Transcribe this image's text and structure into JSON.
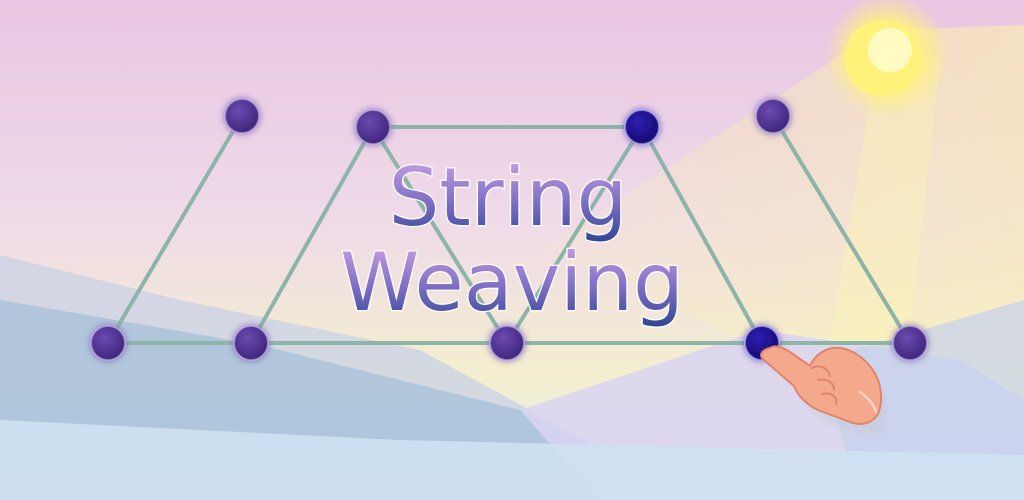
{
  "title": {
    "line1": "String",
    "line2": "Weaving"
  },
  "colors": {
    "string": "#8fb3a8",
    "node": "#4a2f8a",
    "node_active": "#1d0f8a",
    "sky_top": "#e8c8e2",
    "sun": "#fff27a",
    "title_top": "#d9a2e6",
    "title_bottom": "#2e3f8e"
  },
  "nodes": [
    {
      "name": "node-top-1",
      "active": false
    },
    {
      "name": "node-top-2",
      "active": false
    },
    {
      "name": "node-top-3",
      "active": true
    },
    {
      "name": "node-top-4",
      "active": false
    },
    {
      "name": "node-bottom-1",
      "active": false
    },
    {
      "name": "node-bottom-2",
      "active": false
    },
    {
      "name": "node-bottom-3",
      "active": false
    },
    {
      "name": "node-bottom-4",
      "active": true
    },
    {
      "name": "node-bottom-5",
      "active": false
    }
  ],
  "icons": {
    "pointer": "pointing-hand-icon",
    "sun": "sun-icon"
  }
}
